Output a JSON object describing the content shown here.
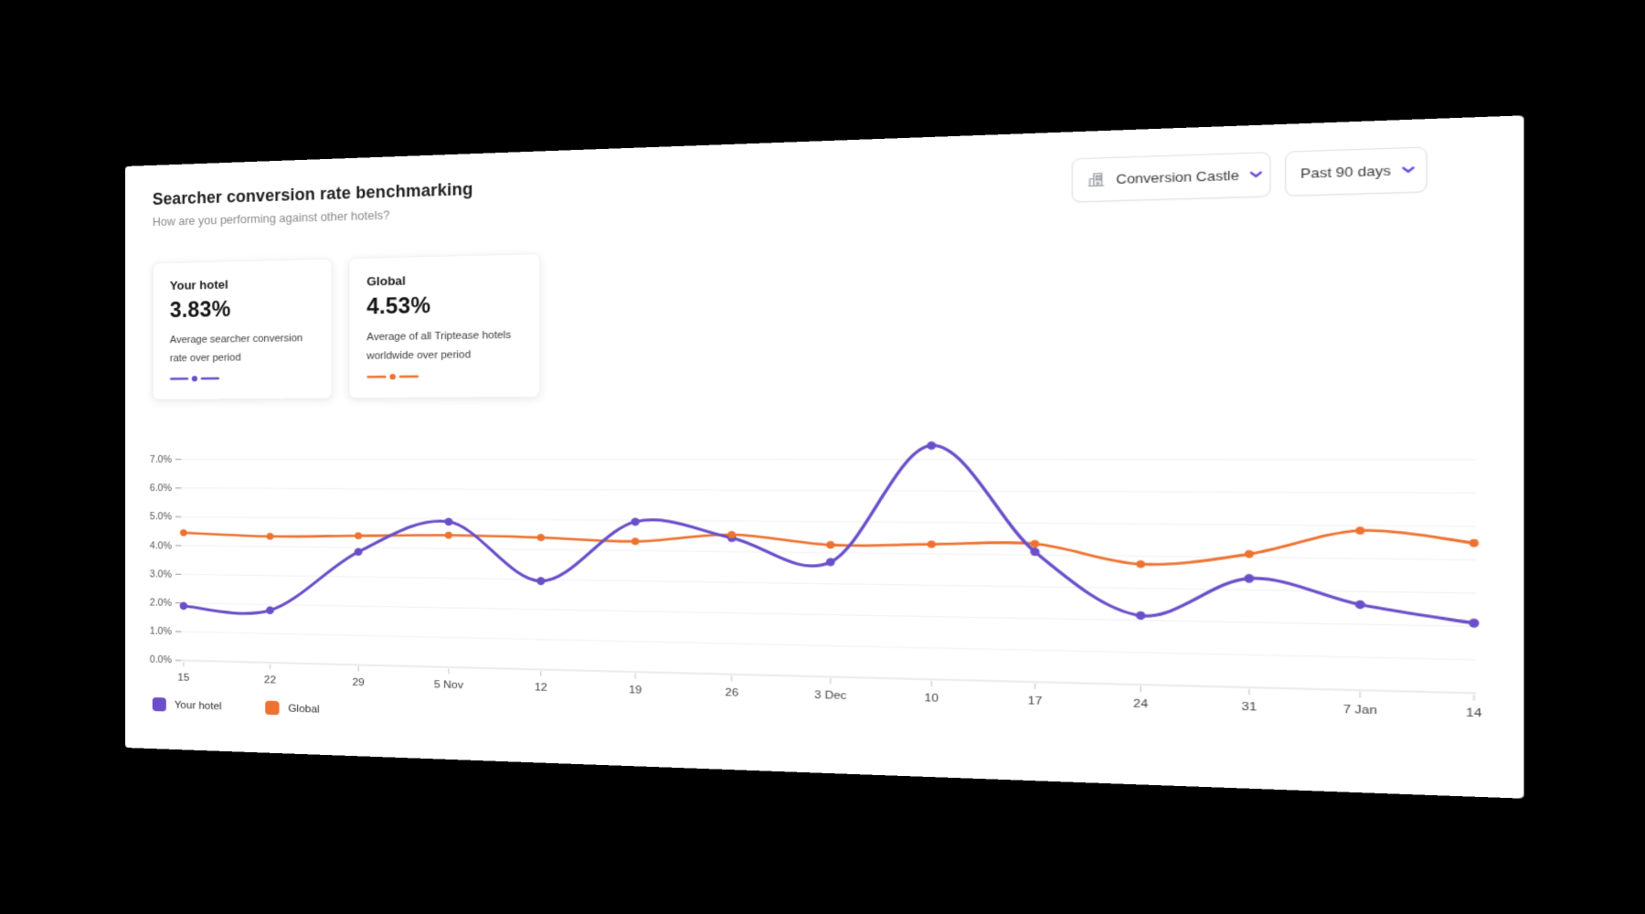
{
  "header": {
    "title": "Searcher conversion rate benchmarking",
    "subtitle": "How are you performing against other hotels?",
    "hotel_selector": {
      "label": "Conversion Castle",
      "icon": "building-icon"
    },
    "date_range_selector": {
      "label": "Past 90 days"
    }
  },
  "summary_cards": [
    {
      "title": "Your hotel",
      "value": "3.83%",
      "description": "Average searcher conversion rate over period",
      "color": "#6A4FC9"
    },
    {
      "title": "Global",
      "value": "4.53%",
      "description": "Average of all Triptease hotels worldwide over period",
      "color": "#ED7231"
    }
  ],
  "chart_data": {
    "type": "line",
    "title": "Searcher conversion rate benchmarking",
    "categories": [
      "15",
      "22",
      "29",
      "5 Nov",
      "12",
      "19",
      "26",
      "3 Dec",
      "10",
      "17",
      "24",
      "31",
      "7 Jan",
      "14"
    ],
    "series": [
      {
        "name": "Your hotel",
        "color": "#6A4FC9",
        "values": [
          1.9,
          1.8,
          3.85,
          4.9,
          2.95,
          4.95,
          4.45,
          3.7,
          7.45,
          4.1,
          2.15,
          3.35,
          2.6,
          2.1
        ]
      },
      {
        "name": "Global",
        "color": "#ED7231",
        "values": [
          4.45,
          4.35,
          4.4,
          4.45,
          4.4,
          4.3,
          4.55,
          4.25,
          4.3,
          4.35,
          3.75,
          4.1,
          4.85,
          4.5
        ]
      }
    ],
    "xlabel": "",
    "ylabel": "",
    "ylim": [
      0,
      7
    ],
    "y_ticks": [
      "0.0%",
      "1.0%",
      "2.0%",
      "3.0%",
      "4.0%",
      "5.0%",
      "6.0%",
      "7.0%"
    ],
    "grid": "horizontal",
    "legend_position": "bottom-left"
  },
  "colors": {
    "background": "#000000",
    "panel": "#ffffff",
    "accent": "#6C4AD9",
    "your_hotel": "#6A4FC9",
    "global": "#ED7231",
    "icon_gray": "#9aa0a6"
  }
}
